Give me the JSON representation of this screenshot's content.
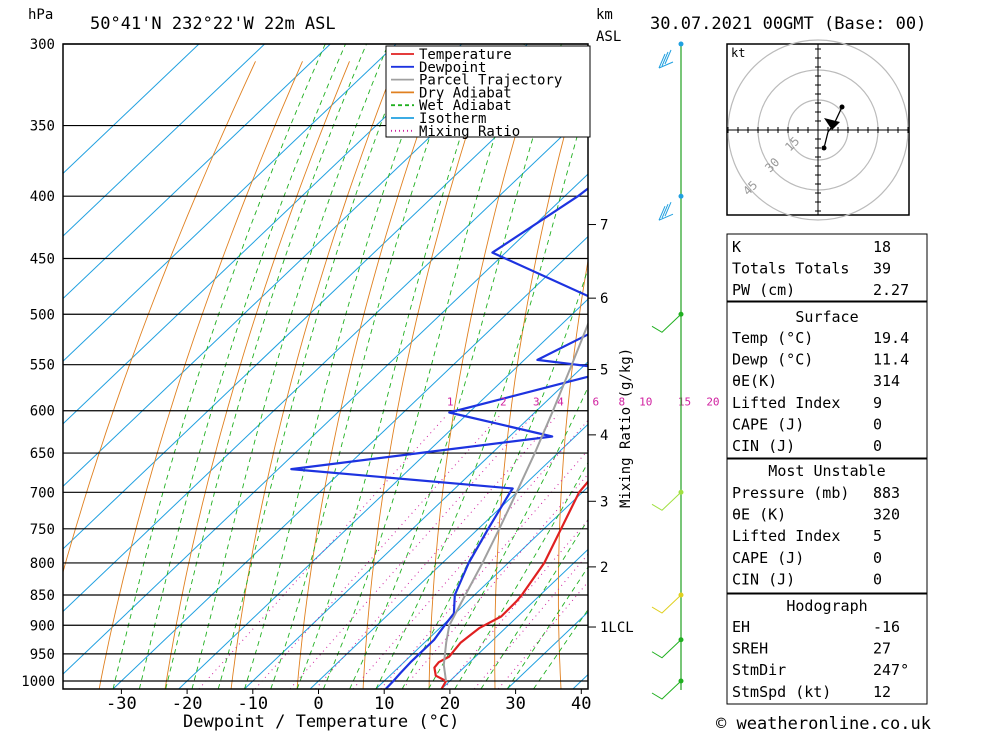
{
  "header": {
    "hpa": "hPa",
    "location": "50°41'N  232°22'W  22m  ASL",
    "km": "km",
    "asl": "ASL",
    "datetime": "30.07.2021  00GMT  (Base: 00)"
  },
  "footer": {
    "xlabel": "Dewpoint / Temperature (°C)",
    "site": "© weatheronline.co.uk"
  },
  "legend": [
    {
      "label": "Temperature",
      "color": "#e02020",
      "style": "solid"
    },
    {
      "label": "Dewpoint",
      "color": "#1d33e0",
      "style": "solid"
    },
    {
      "label": "Parcel Trajectory",
      "color": "#a0a0a0",
      "style": "solid"
    },
    {
      "label": "Dry Adiabat",
      "color": "#e08020",
      "style": "solid"
    },
    {
      "label": "Wet Adiabat",
      "color": "#20b020",
      "style": "dash"
    },
    {
      "label": "Isotherm",
      "color": "#20a0e0",
      "style": "solid"
    },
    {
      "label": "Mixing Ratio",
      "color": "#d020a0",
      "style": "dot"
    }
  ],
  "chart_data": {
    "type": "line",
    "x_ticks": [
      -30,
      -20,
      -10,
      0,
      10,
      20,
      30,
      40
    ],
    "xlim": [
      -40,
      40
    ],
    "pressure_ticks": [
      300,
      350,
      400,
      450,
      500,
      550,
      600,
      650,
      700,
      750,
      800,
      850,
      900,
      950,
      1000
    ],
    "ylim": [
      1015,
      300
    ],
    "km_ticks": [
      {
        "label": "7",
        "p": 422
      },
      {
        "label": "6",
        "p": 485
      },
      {
        "label": "5",
        "p": 555
      },
      {
        "label": "4",
        "p": 628
      },
      {
        "label": "3",
        "p": 712
      },
      {
        "label": "2",
        "p": 806
      },
      {
        "label": "1LCL",
        "p": 903
      }
    ],
    "mixing_ratio_ylabel": "Mixing Ratio (g/kg)",
    "mixing_ratio_labels": [
      "1",
      "2",
      "3",
      "4",
      "6",
      "8",
      "10",
      "15",
      "20",
      "25"
    ],
    "series": [
      {
        "name": "Temperature",
        "color": "#e02020",
        "points": [
          [
            1015,
            20
          ],
          [
            1000,
            19.4
          ],
          [
            990,
            17
          ],
          [
            975,
            15.5
          ],
          [
            965,
            15.3
          ],
          [
            955,
            16
          ],
          [
            930,
            15.5
          ],
          [
            905,
            16
          ],
          [
            885,
            17.5
          ],
          [
            860,
            17.4
          ],
          [
            850,
            17.2
          ],
          [
            800,
            15.5
          ],
          [
            750,
            12.6
          ],
          [
            700,
            9.5
          ],
          [
            680,
            9
          ],
          [
            670,
            9.5
          ],
          [
            650,
            8.5
          ],
          [
            620,
            5.5
          ],
          [
            600,
            4
          ],
          [
            550,
            -2
          ],
          [
            520,
            -6.5
          ],
          [
            500,
            -10.5
          ],
          [
            480,
            -13
          ],
          [
            455,
            -16
          ],
          [
            400,
            -21
          ],
          [
            350,
            -30
          ],
          [
            300,
            -38.5
          ]
        ]
      },
      {
        "name": "Dewpoint",
        "color": "#1d33e0",
        "points": [
          [
            1015,
            11.5
          ],
          [
            1000,
            11.4
          ],
          [
            985,
            11.2
          ],
          [
            965,
            11
          ],
          [
            925,
            11
          ],
          [
            900,
            10.3
          ],
          [
            880,
            9.8
          ],
          [
            850,
            7
          ],
          [
            800,
            4
          ],
          [
            750,
            1.5
          ],
          [
            700,
            -1
          ],
          [
            695,
            -1.2
          ],
          [
            670,
            -38
          ],
          [
            630,
            -3.5
          ],
          [
            602,
            -23
          ],
          [
            555,
            -4.5
          ],
          [
            545,
            -18
          ],
          [
            500,
            -11.5
          ],
          [
            445,
            -42
          ],
          [
            400,
            -38
          ],
          [
            300,
            -32
          ]
        ]
      },
      {
        "name": "Parcel Trajectory",
        "color": "#a0a0a0",
        "points": [
          [
            1000,
            19.4
          ],
          [
            970,
            16.5
          ],
          [
            930,
            13.3
          ],
          [
            900,
            11
          ],
          [
            850,
            8.6
          ],
          [
            800,
            6.1
          ],
          [
            750,
            3.2
          ],
          [
            700,
            0
          ],
          [
            650,
            -3.5
          ],
          [
            600,
            -7.5
          ],
          [
            550,
            -12
          ],
          [
            500,
            -17
          ],
          [
            450,
            -23
          ],
          [
            400,
            -29.5
          ],
          [
            350,
            -37.5
          ],
          [
            300,
            -46
          ]
        ]
      }
    ]
  },
  "hodograph": {
    "unit_label": "kt",
    "ring_labels": [
      "15",
      "30",
      "45"
    ]
  },
  "indices": {
    "block1": [
      {
        "label": "K",
        "value": "18"
      },
      {
        "label": "Totals Totals",
        "value": "39"
      },
      {
        "label": "PW (cm)",
        "value": "2.27"
      }
    ],
    "surface": {
      "title": "Surface",
      "rows": [
        {
          "label": "Temp (°C)",
          "value": "19.4"
        },
        {
          "label": "Dewp (°C)",
          "value": "11.4"
        },
        {
          "label": "θE(K)",
          "value": "314"
        },
        {
          "label": "Lifted Index",
          "value": "9"
        },
        {
          "label": "CAPE (J)",
          "value": "0"
        },
        {
          "label": "CIN (J)",
          "value": "0"
        }
      ]
    },
    "most_unstable": {
      "title": "Most Unstable",
      "rows": [
        {
          "label": "Pressure (mb)",
          "value": "883"
        },
        {
          "label": "θE (K)",
          "value": "320"
        },
        {
          "label": "Lifted Index",
          "value": "5"
        },
        {
          "label": "CAPE (J)",
          "value": "0"
        },
        {
          "label": "CIN (J)",
          "value": "0"
        }
      ]
    },
    "hodograph_block": {
      "title": "Hodograph",
      "rows": [
        {
          "label": "EH",
          "value": "-16"
        },
        {
          "label": "SREH",
          "value": "27"
        },
        {
          "label": "StmDir",
          "value": "247°"
        },
        {
          "label": "StmSpd (kt)",
          "value": "12"
        }
      ]
    }
  }
}
